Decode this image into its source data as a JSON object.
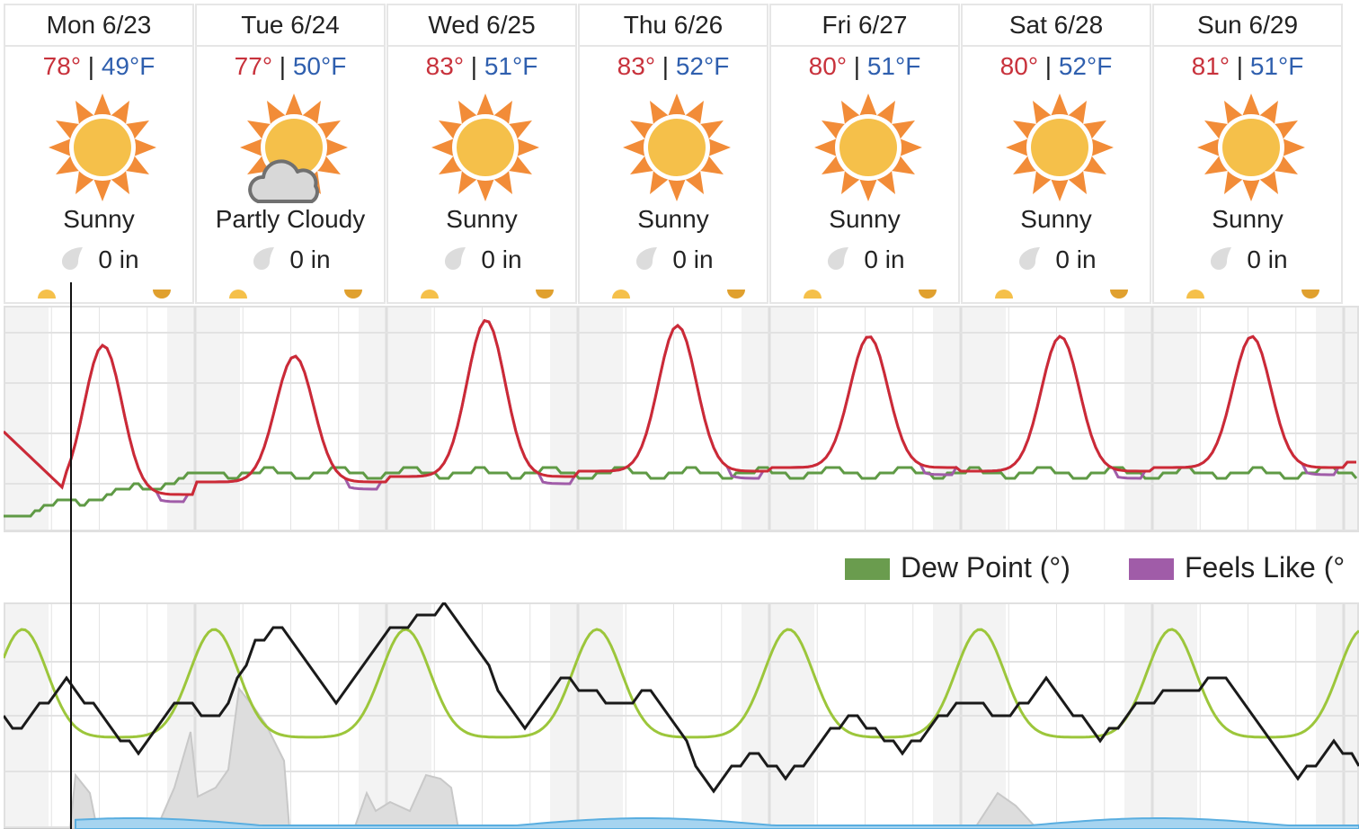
{
  "forecast": {
    "unit": "°F",
    "days": [
      {
        "label": "Mon 6/23",
        "high": "78°",
        "low": "49°F",
        "condition": "Sunny",
        "icon": "sun-icon",
        "precip": "0 in"
      },
      {
        "label": "Tue 6/24",
        "high": "77°",
        "low": "50°F",
        "condition": "Partly Cloudy",
        "icon": "partly-cloudy-icon",
        "precip": "0 in"
      },
      {
        "label": "Wed 6/25",
        "high": "83°",
        "low": "51°F",
        "condition": "Sunny",
        "icon": "sun-icon",
        "precip": "0 in"
      },
      {
        "label": "Thu 6/26",
        "high": "83°",
        "low": "52°F",
        "condition": "Sunny",
        "icon": "sun-icon",
        "precip": "0 in"
      },
      {
        "label": "Fri 6/27",
        "high": "80°",
        "low": "51°F",
        "condition": "Sunny",
        "icon": "sun-icon",
        "precip": "0 in"
      },
      {
        "label": "Sat 6/28",
        "high": "80°",
        "low": "52°F",
        "condition": "Sunny",
        "icon": "sun-icon",
        "precip": "0 in"
      },
      {
        "label": "Sun 6/29",
        "high": "81°",
        "low": "51°F",
        "condition": "Sunny",
        "icon": "sun-icon",
        "precip": "0 in"
      }
    ]
  },
  "separator": "|",
  "legend": [
    {
      "label": "Dew Point (°)",
      "color": "#6a9c4e"
    },
    {
      "label": "Feels Like (°",
      "color": "#a05ca8"
    }
  ],
  "colors": {
    "temperature": "#cc2a36",
    "feels_like": "#a05ca8",
    "dew_point": "#5f9a45",
    "humidity": "#9cc63b",
    "wind": "#1a1a1a",
    "cloud_cover": "#c8c8c8",
    "precip_chance": "#5aaee0",
    "high_temp": "#c8323c",
    "low_temp": "#2f5fae",
    "sun": "#f5c04a",
    "sun_rays": "#f28c38"
  }
}
